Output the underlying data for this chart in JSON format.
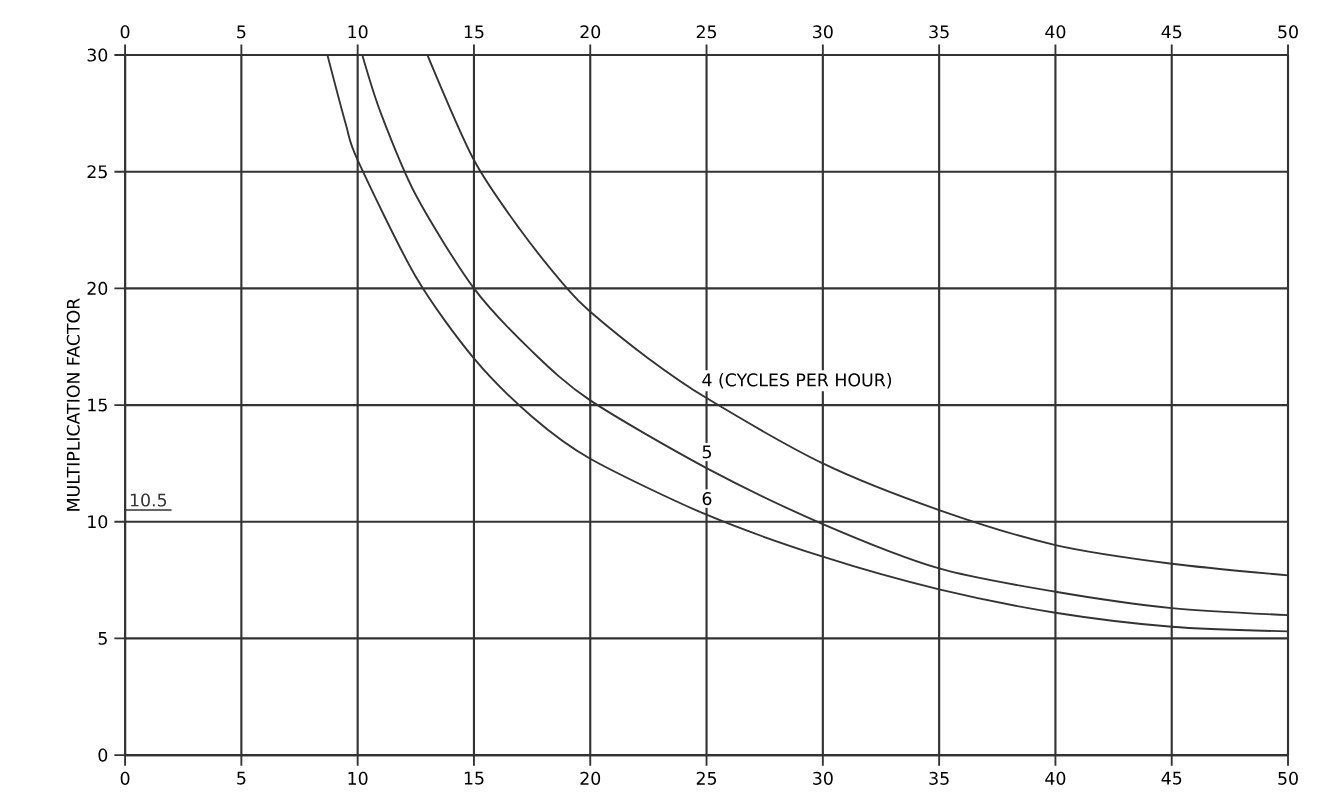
{
  "chart_data": {
    "type": "line",
    "ylabel": "MULTIPLICATION FACTOR",
    "series": [
      {
        "name": "4 (CYCLES PER HOUR)",
        "color": "#333333",
        "x": [
          13,
          15,
          17,
          19,
          20,
          22.5,
          25,
          30,
          35,
          40,
          45,
          50
        ],
        "values": [
          30,
          25.5,
          22.5,
          20,
          19,
          17,
          15.3,
          12.5,
          10.5,
          9,
          8.2,
          7.7
        ]
      },
      {
        "name": "5",
        "color": "#333333",
        "x": [
          10.2,
          11,
          12.5,
          15,
          17.5,
          20,
          25,
          30,
          35,
          40,
          45,
          50
        ],
        "values": [
          30,
          27.5,
          24,
          20,
          17.3,
          15.2,
          12.3,
          9.9,
          8,
          7,
          6.3,
          6
        ]
      },
      {
        "name": "6",
        "color": "#333333",
        "x": [
          8.7,
          9.5,
          10,
          12.5,
          15,
          17.5,
          20,
          25,
          30,
          35,
          40,
          45,
          50
        ],
        "values": [
          30,
          27,
          25.5,
          20.5,
          17,
          14.5,
          12.7,
          10.3,
          8.5,
          7.1,
          6.1,
          5.5,
          5.3
        ]
      }
    ],
    "xlim": [
      0,
      50
    ],
    "xticks": [
      0,
      5,
      10,
      15,
      20,
      25,
      30,
      35,
      40,
      45,
      50
    ],
    "x2lim": [
      0,
      50
    ],
    "x2ticks": [
      0,
      5,
      10,
      15,
      20,
      25,
      30,
      35,
      40,
      45,
      50
    ],
    "ylim": [
      0,
      30
    ],
    "yticks": [
      0,
      5,
      10,
      15,
      20,
      25,
      30
    ],
    "ref_lines": [
      {
        "axis": "y",
        "value": 10.5,
        "label": "10.5"
      }
    ],
    "grid": true,
    "legend": false,
    "marker": "none",
    "line_style": "solid"
  }
}
